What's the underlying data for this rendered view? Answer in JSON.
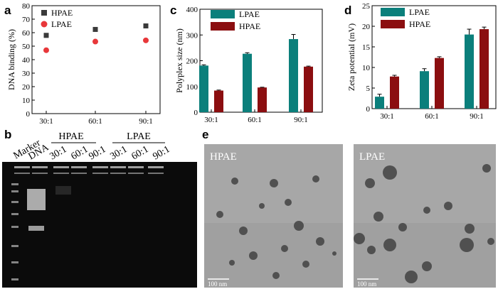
{
  "figure": {
    "panel_letters": {
      "a": "a",
      "b": "b",
      "c": "c",
      "d": "d",
      "e": "e"
    }
  },
  "chart_data": [
    {
      "panel": "a",
      "type": "scatter",
      "ylabel": "DNA binding (%)",
      "categories": [
        "30:1",
        "60:1",
        "90:1"
      ],
      "ylim": [
        0,
        80
      ],
      "yticks": [
        0,
        10,
        20,
        30,
        40,
        50,
        60,
        70,
        80
      ],
      "legend_position": "top-left",
      "series": [
        {
          "name": "HPAE",
          "marker": "square",
          "color": "#3a3a3a",
          "values": [
            58,
            62.4,
            65
          ],
          "error": [
            1.5,
            0.5,
            0.6
          ]
        },
        {
          "name": "LPAE",
          "marker": "circle",
          "color": "#e8373a",
          "values": [
            47,
            53.4,
            54.3
          ],
          "error": [
            0.4,
            0.6,
            0.4
          ]
        }
      ]
    },
    {
      "panel": "c",
      "type": "bar",
      "ylabel": "Polyplex size (nm)",
      "categories": [
        "30:1",
        "60:1",
        "90:1"
      ],
      "ylim": [
        0,
        400
      ],
      "yticks": [
        0,
        100,
        200,
        300,
        400
      ],
      "legend_position": "top-left",
      "series": [
        {
          "name": "LPAE",
          "color": "#0b7f7b",
          "values": [
            181,
            227,
            284
          ],
          "error": [
            3,
            4,
            18
          ]
        },
        {
          "name": "HPAE",
          "color": "#8b0e10",
          "values": [
            84,
            96,
            177
          ],
          "error": [
            2,
            1,
            2
          ]
        }
      ]
    },
    {
      "panel": "d",
      "type": "bar",
      "ylabel": "Zeta potential (mV)",
      "categories": [
        "30:1",
        "60:1",
        "90:1"
      ],
      "ylim": [
        0,
        25
      ],
      "yticks": [
        0,
        5,
        10,
        15,
        20,
        25
      ],
      "legend_position": "top-left",
      "series": [
        {
          "name": "LPAE",
          "color": "#0b7f7b",
          "values": [
            2.9,
            9.1,
            18.0
          ],
          "error": [
            0.6,
            0.6,
            1.3
          ]
        },
        {
          "name": "HPAE",
          "color": "#8b0e10",
          "values": [
            7.8,
            12.3,
            19.3
          ],
          "error": [
            0.3,
            0.3,
            0.5
          ]
        }
      ]
    }
  ],
  "gel": {
    "lane_labels": [
      "Marker",
      "DNA",
      "30:1",
      "60:1",
      "90:1",
      "30:1",
      "60:1",
      "90:1"
    ],
    "group_labels": [
      "HPAE",
      "LPAE"
    ]
  },
  "tem": [
    {
      "label": "HPAE",
      "scale_text": "100 nm"
    },
    {
      "label": "LPAE",
      "scale_text": "100 nm"
    }
  ]
}
